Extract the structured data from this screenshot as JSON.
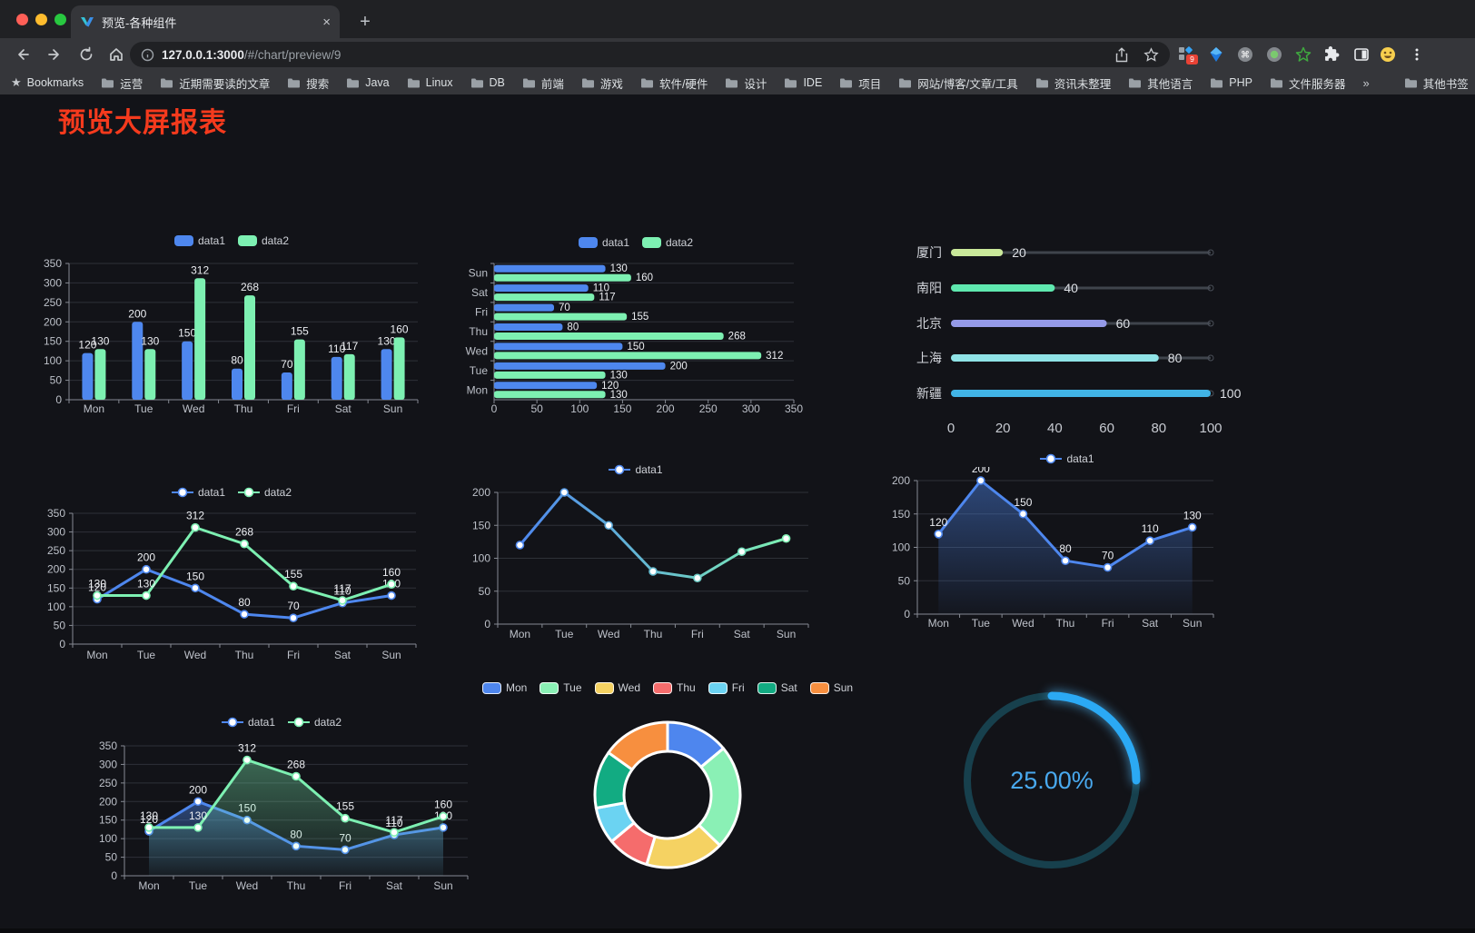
{
  "browser": {
    "tab_title": "预览-各种组件",
    "tab_close": "×",
    "new_tab": "+",
    "url_host": "127.0.0.1:3000",
    "url_path": "/#/chart/preview/9",
    "extension_badge": "9",
    "window_controls": [
      "close",
      "minimize",
      "zoom"
    ],
    "nav_icons": [
      "back",
      "forward",
      "reload",
      "home"
    ],
    "pill_icons": [
      "info",
      "share",
      "star"
    ],
    "extension_icons": [
      "grid-extension",
      "kite-extension",
      "command-circle-extension",
      "record-circle-extension",
      "green-star-extension",
      "puzzle-extensions",
      "side-panel",
      "emoji-extension",
      "kebab-menu"
    ],
    "bookmarks": [
      "Bookmarks",
      "运营",
      "近期需要读的文章",
      "搜索",
      "Java",
      "Linux",
      "DB",
      "前端",
      "游戏",
      "软件/硬件",
      "设计",
      "IDE",
      "项目",
      "网站/博客/文章/工具",
      "资讯未整理",
      "其他语言",
      "PHP",
      "文件服务器"
    ],
    "bookmarks_overflow": "»",
    "other_bookmarks_label": "其他书签"
  },
  "page": {
    "title": "预览大屏报表",
    "title_color": "#f53a1d"
  },
  "theme": {
    "background": "#121318",
    "axis_line": "#868a93",
    "tick_label": "#bdc1c9",
    "grid_line": "#2e3138",
    "value_label": "#eceef2",
    "series_blue": "#4e87ee",
    "series_green": "#7df0b2"
  },
  "chart_data": [
    {
      "id": "bar-vertical",
      "type": "bar",
      "categories": [
        "Mon",
        "Tue",
        "Wed",
        "Thu",
        "Fri",
        "Sat",
        "Sun"
      ],
      "series": [
        {
          "name": "data1",
          "color": "#4e87ee",
          "values": [
            120,
            200,
            150,
            80,
            70,
            110,
            130
          ]
        },
        {
          "name": "data2",
          "color": "#7df0b2",
          "values": [
            130,
            130,
            312,
            268,
            155,
            117,
            160
          ]
        }
      ],
      "ylim": [
        0,
        350
      ],
      "yticks": [
        0,
        50,
        100,
        150,
        200,
        250,
        300,
        350
      ],
      "legend_position": "top",
      "grid": true,
      "value_labels": true
    },
    {
      "id": "bar-horizontal",
      "type": "hbar",
      "categories_top_to_bottom": [
        "Sun",
        "Sat",
        "Fri",
        "Thu",
        "Wed",
        "Tue",
        "Mon"
      ],
      "series": [
        {
          "name": "data1",
          "color": "#4e87ee",
          "values_top_to_bottom": [
            130,
            110,
            70,
            80,
            150,
            200,
            120
          ]
        },
        {
          "name": "data2",
          "color": "#7df0b2",
          "values_top_to_bottom": [
            160,
            117,
            155,
            268,
            312,
            130,
            130
          ]
        }
      ],
      "xlim": [
        0,
        350
      ],
      "xticks": [
        0,
        50,
        100,
        150,
        200,
        250,
        300,
        350
      ],
      "legend_position": "top",
      "grid": true,
      "value_labels": true
    },
    {
      "id": "city-progress",
      "type": "progress_bars",
      "rows": [
        {
          "label": "厦门",
          "value": 20,
          "color": "#c9e89a"
        },
        {
          "label": "南阳",
          "value": 40,
          "color": "#5fe8af"
        },
        {
          "label": "北京",
          "value": 60,
          "color": "#959ae8"
        },
        {
          "label": "上海",
          "value": 80,
          "color": "#8fe3e6"
        },
        {
          "label": "新疆",
          "value": 100,
          "color": "#41b4e6"
        }
      ],
      "xlim": [
        0,
        100
      ],
      "xticks": [
        0,
        20,
        40,
        60,
        80,
        100
      ]
    },
    {
      "id": "line-dual",
      "type": "line",
      "categories": [
        "Mon",
        "Tue",
        "Wed",
        "Thu",
        "Fri",
        "Sat",
        "Sun"
      ],
      "series": [
        {
          "name": "data1",
          "color": "#4e87ee",
          "values": [
            120,
            200,
            150,
            80,
            70,
            110,
            130
          ]
        },
        {
          "name": "data2",
          "color": "#7df0b2",
          "values": [
            130,
            130,
            312,
            268,
            155,
            117,
            160
          ]
        }
      ],
      "ylim": [
        0,
        350
      ],
      "yticks": [
        0,
        50,
        100,
        150,
        200,
        250,
        300,
        350
      ],
      "legend_position": "top",
      "grid": true,
      "value_labels": true
    },
    {
      "id": "line-gradient",
      "type": "line",
      "categories": [
        "Mon",
        "Tue",
        "Wed",
        "Thu",
        "Fri",
        "Sat",
        "Sun"
      ],
      "series": [
        {
          "name": "data1",
          "gradient": [
            "#4e87ee",
            "#7df0b2"
          ],
          "values": [
            120,
            200,
            150,
            80,
            70,
            110,
            130
          ]
        }
      ],
      "ylim": [
        0,
        200
      ],
      "yticks": [
        0,
        50,
        100,
        150,
        200
      ],
      "legend_position": "top",
      "grid": true,
      "value_labels": false
    },
    {
      "id": "line-area",
      "type": "line",
      "categories": [
        "Mon",
        "Tue",
        "Wed",
        "Thu",
        "Fri",
        "Sat",
        "Sun"
      ],
      "series": [
        {
          "name": "data1",
          "color": "#4e87ee",
          "area": true,
          "values": [
            120,
            200,
            150,
            80,
            70,
            110,
            130
          ]
        }
      ],
      "ylim": [
        0,
        200
      ],
      "yticks": [
        0,
        50,
        100,
        150,
        200
      ],
      "legend_position": "top",
      "grid": true,
      "value_labels": true
    },
    {
      "id": "line-dual-area",
      "type": "line",
      "categories": [
        "Mon",
        "Tue",
        "Wed",
        "Thu",
        "Fri",
        "Sat",
        "Sun"
      ],
      "series": [
        {
          "name": "data1",
          "color": "#4e87ee",
          "area": true,
          "values": [
            120,
            200,
            150,
            80,
            70,
            110,
            130
          ]
        },
        {
          "name": "data2",
          "color": "#7df0b2",
          "area": true,
          "values": [
            130,
            130,
            312,
            268,
            155,
            117,
            160
          ]
        }
      ],
      "ylim": [
        0,
        350
      ],
      "yticks": [
        0,
        50,
        100,
        150,
        200,
        250,
        300,
        350
      ],
      "legend_position": "top",
      "grid": true,
      "value_labels": true
    },
    {
      "id": "weekday-donut",
      "type": "pie",
      "donut": true,
      "legend_position": "top",
      "slices": [
        {
          "label": "Mon",
          "value": 120,
          "color": "#4e86ee"
        },
        {
          "label": "Tue",
          "value": 200,
          "color": "#8af0b5"
        },
        {
          "label": "Wed",
          "value": 150,
          "color": "#f5d262"
        },
        {
          "label": "Thu",
          "value": 80,
          "color": "#f56c6c"
        },
        {
          "label": "Fri",
          "value": 70,
          "color": "#6bd3f2"
        },
        {
          "label": "Sat",
          "value": 110,
          "color": "#12ab82"
        },
        {
          "label": "Sun",
          "value": 130,
          "color": "#f78f3f"
        }
      ]
    },
    {
      "id": "percent-gauge",
      "type": "gauge",
      "value": 25,
      "value_label": "25.00%",
      "arc_color": "#2ba9f4",
      "track_color": "#17404d",
      "text_color": "#49a9ef"
    }
  ]
}
